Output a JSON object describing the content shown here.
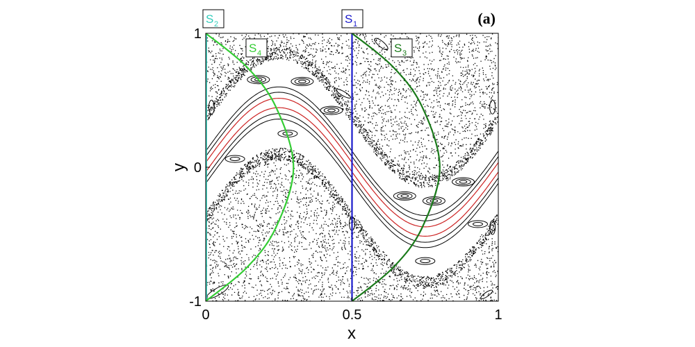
{
  "chart_data": {
    "type": "scatter",
    "title": "",
    "panel_label": "(a)",
    "xlabel": "x",
    "ylabel": "y",
    "xlim": [
      0,
      1
    ],
    "ylim": [
      -1,
      1
    ],
    "x_ticks": [
      {
        "value": 0,
        "label": "0"
      },
      {
        "value": 0.5,
        "label": "0.5"
      },
      {
        "value": 1,
        "label": "1"
      }
    ],
    "y_ticks": [
      {
        "value": -1,
        "label": "-1"
      },
      {
        "value": 0,
        "label": "0"
      },
      {
        "value": 1,
        "label": "1"
      }
    ],
    "grid": false,
    "chaotic_sea": {
      "color": "#000000",
      "style": "dots"
    },
    "invariant_curve_color": "#cc2222",
    "island_color": "#000000",
    "sections": [
      {
        "name": "S",
        "sub": "1",
        "color": "#1a1acc",
        "kind": "vertical",
        "x": 0.5
      },
      {
        "name": "S",
        "sub": "2",
        "color": "#33ccbb",
        "kind": "vertical",
        "x": 0.0
      },
      {
        "name": "S",
        "sub": "3",
        "color": "#1a7a1a",
        "kind": "arc",
        "points": [
          [
            0.5,
            1.0
          ],
          [
            0.64,
            0.75
          ],
          [
            0.74,
            0.45
          ],
          [
            0.8,
            0.0
          ],
          [
            0.74,
            -0.45
          ],
          [
            0.64,
            -0.75
          ],
          [
            0.5,
            -1.0
          ]
        ]
      },
      {
        "name": "S",
        "sub": "4",
        "color": "#33cc33",
        "kind": "arc",
        "points": [
          [
            0.0,
            1.0
          ],
          [
            0.14,
            0.75
          ],
          [
            0.24,
            0.45
          ],
          [
            0.3,
            0.0
          ],
          [
            0.24,
            -0.45
          ],
          [
            0.14,
            -0.75
          ],
          [
            0.0,
            -1.0
          ]
        ]
      }
    ]
  }
}
